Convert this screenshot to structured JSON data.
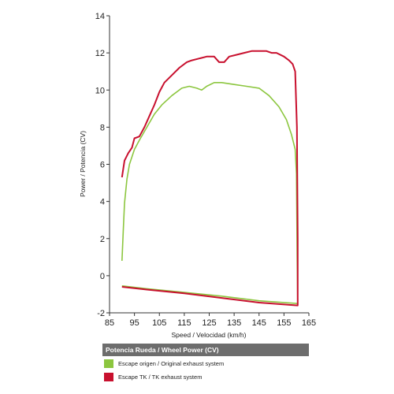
{
  "chart_data": {
    "type": "line",
    "xlabel": "Speed / Velocidad (km/h)",
    "ylabel": "Power / Potencia (CV)",
    "xlim": [
      85,
      165
    ],
    "ylim": [
      -2,
      14
    ],
    "x_ticks": [
      "85",
      "95",
      "105",
      "115",
      "125",
      "135",
      "145",
      "155",
      "165"
    ],
    "y_ticks": [
      "-2",
      "0",
      "2",
      "4",
      "6",
      "8",
      "10",
      "12",
      "14"
    ],
    "grid": false,
    "legend_title": "Potencia Rueda / Wheel Power (CV)",
    "legend_position": "bottom",
    "series": [
      {
        "name": "Escape origen / Original exhaust system",
        "color": "#8cc63f",
        "points": [
          [
            90,
            0.8
          ],
          [
            90.5,
            2.4
          ],
          [
            91,
            3.9
          ],
          [
            92,
            5.2
          ],
          [
            93,
            6.0
          ],
          [
            95,
            6.8
          ],
          [
            97,
            7.3
          ],
          [
            100,
            8.0
          ],
          [
            103,
            8.7
          ],
          [
            106,
            9.2
          ],
          [
            110,
            9.7
          ],
          [
            114,
            10.1
          ],
          [
            117,
            10.2
          ],
          [
            120,
            10.1
          ],
          [
            122,
            10.0
          ],
          [
            124,
            10.2
          ],
          [
            127,
            10.4
          ],
          [
            130,
            10.4
          ],
          [
            135,
            10.3
          ],
          [
            140,
            10.2
          ],
          [
            145,
            10.1
          ],
          [
            149,
            9.7
          ],
          [
            153,
            9.1
          ],
          [
            156,
            8.4
          ],
          [
            158,
            7.6
          ],
          [
            159.5,
            6.8
          ],
          [
            160,
            5.5
          ],
          [
            160.3,
            1.0
          ],
          [
            160.5,
            -1.5
          ],
          [
            145,
            -1.35
          ],
          [
            130,
            -1.1
          ],
          [
            115,
            -0.9
          ],
          [
            100,
            -0.7
          ],
          [
            90,
            -0.55
          ]
        ]
      },
      {
        "name": "Escape TK / TK exhaust system",
        "color": "#c8102e",
        "points": [
          [
            90,
            5.3
          ],
          [
            91,
            6.2
          ],
          [
            92.5,
            6.6
          ],
          [
            94,
            6.9
          ],
          [
            95,
            7.4
          ],
          [
            97,
            7.5
          ],
          [
            99,
            8.0
          ],
          [
            101,
            8.6
          ],
          [
            103,
            9.2
          ],
          [
            105,
            9.9
          ],
          [
            107,
            10.4
          ],
          [
            110,
            10.8
          ],
          [
            113,
            11.2
          ],
          [
            116,
            11.5
          ],
          [
            118,
            11.6
          ],
          [
            121,
            11.7
          ],
          [
            124,
            11.8
          ],
          [
            127,
            11.8
          ],
          [
            129,
            11.5
          ],
          [
            131,
            11.5
          ],
          [
            133,
            11.8
          ],
          [
            136,
            11.9
          ],
          [
            139,
            12.0
          ],
          [
            142,
            12.1
          ],
          [
            145,
            12.1
          ],
          [
            148,
            12.1
          ],
          [
            150,
            12.0
          ],
          [
            152,
            12.0
          ],
          [
            155,
            11.8
          ],
          [
            157,
            11.6
          ],
          [
            158.5,
            11.4
          ],
          [
            159.5,
            11.0
          ],
          [
            160.2,
            8.0
          ],
          [
            160.5,
            2.0
          ],
          [
            160.5,
            -1.6
          ],
          [
            145,
            -1.45
          ],
          [
            130,
            -1.2
          ],
          [
            115,
            -0.95
          ],
          [
            100,
            -0.75
          ],
          [
            90,
            -0.6
          ]
        ]
      }
    ]
  }
}
